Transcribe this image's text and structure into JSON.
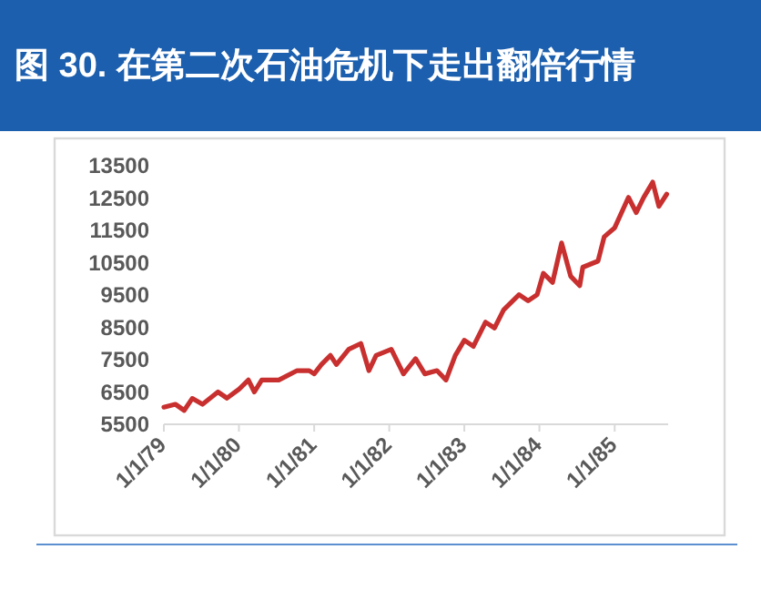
{
  "chart_data": {
    "type": "line",
    "title": "图 30. 在第二次石油危机下走出翻倍行情",
    "x": [
      "1979-01-01",
      "1979-02-26",
      "1979-04-10",
      "1979-05-19",
      "1979-07-08",
      "1979-09-21",
      "1979-11-04",
      "1980-01-02",
      "1980-02-16",
      "1980-03-16",
      "1980-04-21",
      "1980-07-13",
      "1980-10-10",
      "1980-12-08",
      "1981-01-01",
      "1981-02-05",
      "1981-03-21",
      "1981-04-19",
      "1981-06-18",
      "1981-08-16",
      "1981-09-24",
      "1981-10-29",
      "1982-01-11",
      "1982-03-11",
      "1982-05-09",
      "1982-06-23",
      "1982-08-21",
      "1982-10-04",
      "1982-11-18",
      "1983-01-01",
      "1983-02-14",
      "1983-04-14",
      "1983-05-28",
      "1983-07-11",
      "1983-09-24",
      "1983-11-07",
      "1983-12-21",
      "1984-01-20",
      "1984-03-05",
      "1984-04-18",
      "1984-06-01",
      "1984-07-15",
      "1984-07-30",
      "1984-10-12",
      "1984-11-11",
      "1985-01-01",
      "1985-03-09",
      "1985-04-16",
      "1985-05-22",
      "1985-07-05",
      "1985-08-04",
      "1985-09-11"
    ],
    "series": [
      {
        "color": "#c8302f",
        "values": [
          6030,
          6120,
          5930,
          6300,
          6120,
          6500,
          6310,
          6590,
          6870,
          6500,
          6870,
          6870,
          7160,
          7160,
          7060,
          7350,
          7630,
          7350,
          7820,
          8000,
          7160,
          7630,
          7820,
          7060,
          7530,
          7060,
          7160,
          6870,
          7630,
          8100,
          7910,
          8660,
          8480,
          9040,
          9510,
          9320,
          9510,
          10170,
          9890,
          11110,
          10080,
          9790,
          10360,
          10550,
          11300,
          11580,
          12520,
          12050,
          12520,
          12990,
          12240,
          12620
        ]
      }
    ],
    "xlim": [
      "1979-01-01",
      "1985-09-18"
    ],
    "xticks": [
      {
        "value": "1979-01-01",
        "label": "1/1/79"
      },
      {
        "value": "1980-01-01",
        "label": "1/1/80"
      },
      {
        "value": "1981-01-01",
        "label": "1/1/81"
      },
      {
        "value": "1982-01-01",
        "label": "1/1/82"
      },
      {
        "value": "1983-01-01",
        "label": "1/1/83"
      },
      {
        "value": "1984-01-01",
        "label": "1/1/84"
      },
      {
        "value": "1985-01-01",
        "label": "1/1/85"
      }
    ],
    "ylim": [
      5500,
      13500
    ],
    "yticks": [
      5500,
      6500,
      7500,
      8500,
      9500,
      10500,
      11500,
      12500,
      13500
    ],
    "grid": false,
    "marker": "none",
    "line_style": "solid"
  }
}
